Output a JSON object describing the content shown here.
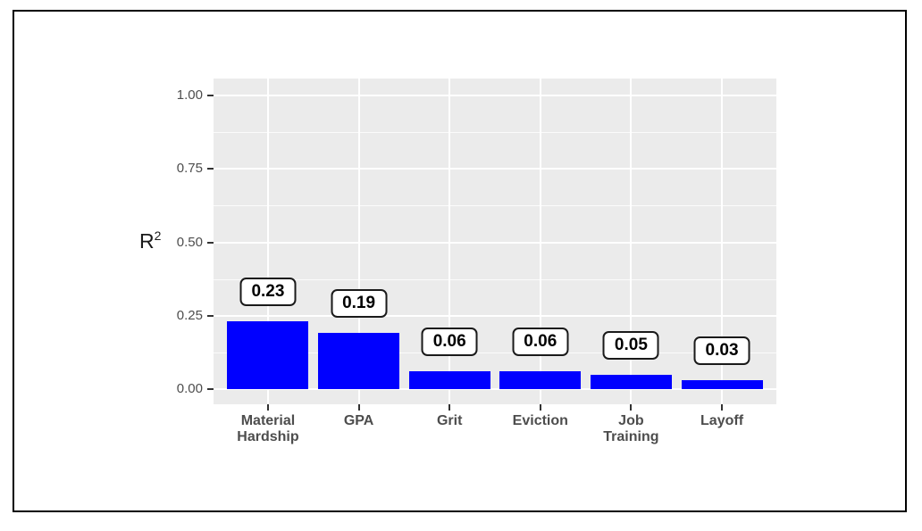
{
  "figure": {
    "kind": "ggplot-style bar chart inside a black rectangular frame on white background"
  },
  "y_axis": {
    "title_base": "R",
    "title_sup": "2",
    "tick_labels": [
      "0.00",
      "0.25",
      "0.50",
      "0.75",
      "1.00"
    ],
    "tick_values": [
      0,
      0.25,
      0.5,
      0.75,
      1.0
    ]
  },
  "chart_data": {
    "type": "bar",
    "categories": [
      "Material\nHardship",
      "GPA",
      "Grit",
      "Eviction",
      "Job\nTraining",
      "Layoff"
    ],
    "values": [
      0.23,
      0.19,
      0.06,
      0.06,
      0.05,
      0.03
    ],
    "bar_value_labels": [
      "0.23",
      "0.19",
      "0.06",
      "0.06",
      "0.05",
      "0.03"
    ],
    "title": "",
    "xlabel": "",
    "ylabel": "R2",
    "ylim": [
      0,
      1.0
    ],
    "y_major_ticks": [
      0,
      0.25,
      0.5,
      0.75,
      1.0
    ],
    "y_minor_ticks": [
      0.125,
      0.375,
      0.625,
      0.875
    ],
    "grid": "major white and minor white horizontal lines, white vertical lines at category centers",
    "legend": "none",
    "colors": {
      "bar_fill": "#0000ff",
      "panel_background": "#ebebeb",
      "gridline": "#ffffff",
      "tick_mark": "#333333",
      "tick_text": "#4d4d4d",
      "value_label_border": "#1a1a1a",
      "value_label_background": "#ffffff",
      "frame_border": "#000000"
    }
  }
}
